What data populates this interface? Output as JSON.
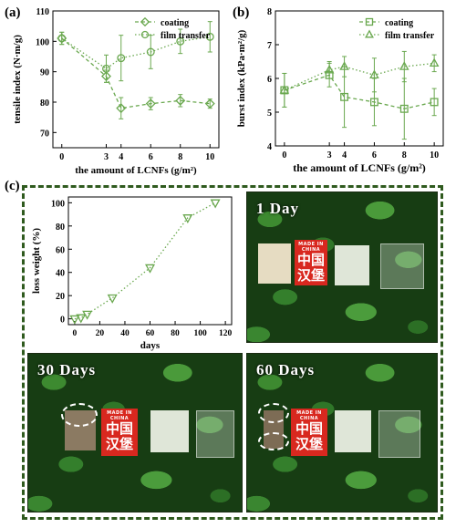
{
  "panels": {
    "a": "(a)",
    "b": "(b)",
    "c": "(c)"
  },
  "colors": {
    "series": "#6aa84f",
    "frame": "#2f5a1e"
  },
  "chart_data": [
    {
      "type": "line",
      "xlabel": "the amount of LCNFs (g/m²)",
      "ylabel": "tensile index (N·m/g)",
      "x": [
        0,
        3,
        4,
        6,
        8,
        10
      ],
      "xticks": [
        "0",
        "3",
        "4",
        "6",
        "8",
        "10"
      ],
      "ylim": [
        65,
        110
      ],
      "yticks": [
        70,
        80,
        90,
        100,
        110
      ],
      "legend": "top-right",
      "series": [
        {
          "name": "coating",
          "marker": "diamond",
          "line": "dashed",
          "values": [
            101,
            88.5,
            78,
            79.5,
            80.5,
            79.5
          ],
          "errors": [
            2,
            2,
            3.5,
            2,
            2,
            1.5
          ]
        },
        {
          "name": "film transfer",
          "marker": "circle",
          "line": "dotted",
          "values": [
            101,
            91,
            94.5,
            96.5,
            100,
            101.5
          ],
          "errors": [
            2,
            4.5,
            7.5,
            5.5,
            4,
            5
          ]
        }
      ]
    },
    {
      "type": "line",
      "xlabel": "the amount of LCNFs (g/m²)",
      "ylabel": "burst index (kPa·m²/g)",
      "x": [
        0,
        3,
        4,
        6,
        8,
        10
      ],
      "xticks": [
        "0",
        "3",
        "4",
        "6",
        "8",
        "10"
      ],
      "ylim": [
        4,
        8
      ],
      "yticks": [
        4,
        5,
        6,
        7,
        8
      ],
      "legend": "top-right",
      "series": [
        {
          "name": "coating",
          "marker": "square",
          "line": "dashed",
          "values": [
            5.65,
            6.1,
            5.45,
            5.3,
            5.1,
            5.3
          ],
          "errors": [
            0.5,
            0.35,
            0.9,
            0.7,
            0.9,
            0.4
          ]
        },
        {
          "name": "film transfer",
          "marker": "triangle-up",
          "line": "dotted",
          "values": [
            5.65,
            6.25,
            6.35,
            6.1,
            6.35,
            6.45
          ],
          "errors": [
            0.5,
            0.25,
            0.3,
            0.5,
            0.45,
            0.25
          ]
        }
      ]
    },
    {
      "type": "line",
      "xlabel": "days",
      "ylabel": "loss weight (%)",
      "x": [
        0,
        5,
        10,
        30,
        60,
        90,
        112
      ],
      "xticks": [
        "0",
        "20",
        "40",
        "60",
        "80",
        "100",
        "120"
      ],
      "xlim": [
        -5,
        125
      ],
      "ylim": [
        -5,
        105
      ],
      "yticks": [
        0,
        20,
        40,
        60,
        80,
        100
      ],
      "series": [
        {
          "marker": "triangle-down",
          "line": "dotted",
          "values": [
            0,
            1,
            4,
            18,
            44,
            87,
            100
          ]
        }
      ]
    }
  ],
  "photos": [
    {
      "label": "1  Day"
    },
    {
      "label": "30  Days"
    },
    {
      "label": "60  Days"
    }
  ],
  "stamp": {
    "made": "MADE IN CHINA",
    "line1": "中国",
    "line2": "汉堡"
  }
}
